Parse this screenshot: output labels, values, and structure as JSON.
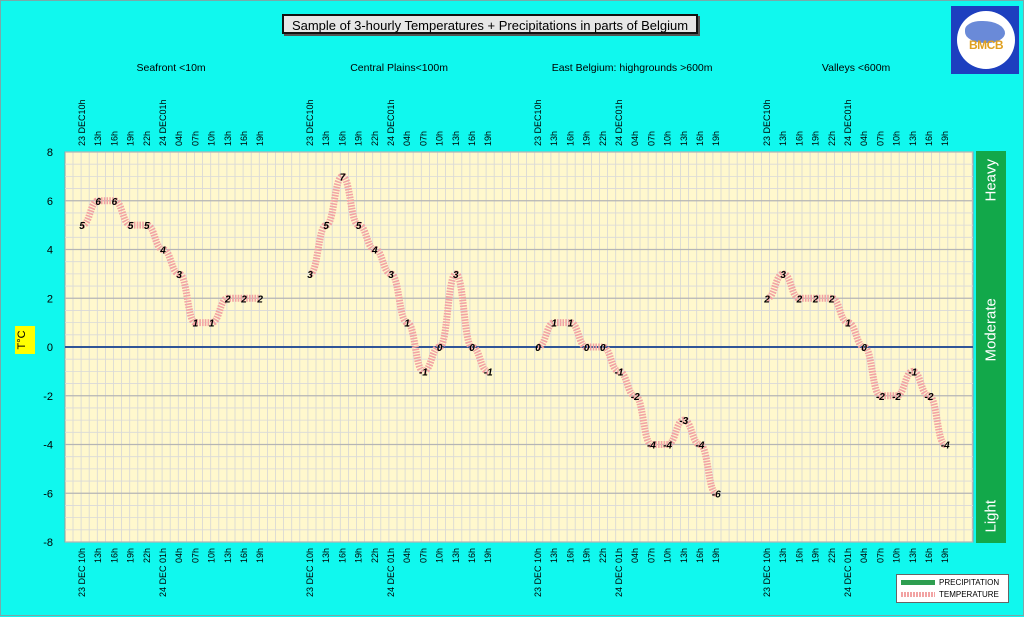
{
  "title": "Sample of 3-hourly Temperatures + Precipitations in parts of Belgium",
  "logo": {
    "text": "BMCB"
  },
  "intensity_scale": [
    "Light",
    "Moderate",
    "Heavy"
  ],
  "legend": {
    "precipitation": "PRECIPITATION",
    "temperature": "TEMPERATURE"
  },
  "colors": {
    "background": "#10f8ee",
    "plot": "#fff8cd",
    "zero_line": "#2f5597",
    "temperature": "#f2a3a3",
    "precipitation": "#2e9e50",
    "intensity_bar": "#12a84a"
  },
  "chart_data": {
    "type": "line",
    "ylabel": "T°C",
    "ylim": [
      -8,
      8
    ],
    "yticks": [
      -8,
      -6,
      -4,
      -2,
      0,
      2,
      4,
      6,
      8
    ],
    "grid": true,
    "legend_position": "bottom-right",
    "top_ticks": [
      "23 DEC10h",
      "13h",
      "16h",
      "19h",
      "22h",
      "24 DEC01h",
      "04h",
      "07h",
      "10h",
      "13h",
      "16h",
      "19h"
    ],
    "bottom_ticks": [
      "23 DEC 10h",
      "13h",
      "16h",
      "19h",
      "22h",
      "24 DEC 01h",
      "04h",
      "07h",
      "10h",
      "13h",
      "16h",
      "19h"
    ],
    "series": [
      {
        "name": "Seafront <10m",
        "values": [
          5,
          6,
          6,
          5,
          5,
          4,
          3,
          1,
          1,
          2,
          2,
          2
        ]
      },
      {
        "name": "Central Plains<100m",
        "values": [
          3,
          5,
          7,
          5,
          4,
          3,
          1,
          -1,
          0,
          3,
          0,
          -1
        ]
      },
      {
        "name": "East Belgium:    highgrounds >600m",
        "values": [
          0,
          1,
          1,
          0,
          0,
          -1,
          -2,
          -4,
          -4,
          -3,
          -4,
          -6
        ]
      },
      {
        "name": "Valleys <600m",
        "values": [
          2,
          3,
          2,
          2,
          2,
          1,
          0,
          -2,
          -2,
          -1,
          -2,
          -4
        ]
      }
    ]
  }
}
